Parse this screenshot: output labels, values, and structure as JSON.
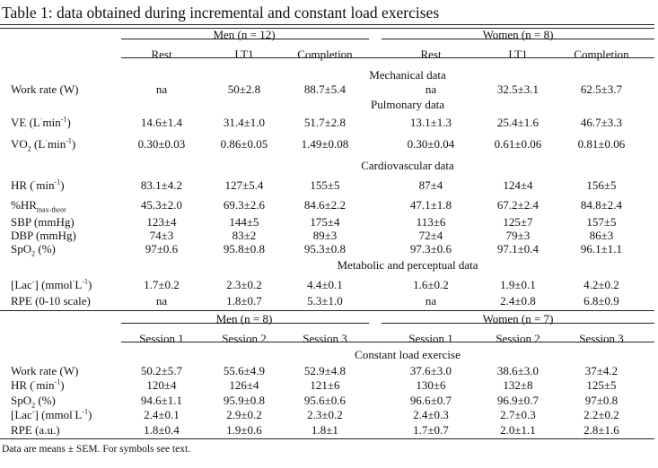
{
  "title": "Table 1: data obtained during incremental and constant load exercises",
  "incremental": {
    "groups": [
      "Men (n = 12)",
      "Women (n = 8)"
    ],
    "columns": [
      "Rest",
      "LT1",
      "Completion",
      "Rest",
      "LT1",
      "Completion"
    ],
    "sections": [
      {
        "heading": "Mechanical data",
        "rows": [
          {
            "label": [
              {
                "t": "Work rate (W)"
              }
            ],
            "values": [
              "na",
              "50±2.8",
              "88.7±5.4",
              "na",
              "32.5±3.1",
              "62.5±3.7"
            ]
          }
        ]
      },
      {
        "heading": "Pulmonary data",
        "rows": [
          {
            "label": [
              {
                "t": "VE (L"
              },
              {
                "t": "·",
                "s": "sup"
              },
              {
                "t": "min"
              },
              {
                "t": "-1",
                "s": "sup"
              },
              {
                "t": ")"
              }
            ],
            "values": [
              "14.6±1.4",
              "31.4±1.0",
              "51.7±2.8",
              "13.1±1.3",
              "25.4±1.6",
              "46.7±3.3"
            ]
          },
          {
            "label": [
              {
                "t": "VO"
              },
              {
                "t": "2",
                "s": "sub"
              },
              {
                "t": " (L"
              },
              {
                "t": "·",
                "s": "sup"
              },
              {
                "t": "min"
              },
              {
                "t": "-1",
                "s": "sup"
              },
              {
                "t": ")"
              }
            ],
            "values": [
              "0.30±0.03",
              "0.86±0.05",
              "1.49±0.08",
              "0.30±0.04",
              "0.61±0.06",
              "0.81±0.06"
            ]
          }
        ]
      },
      {
        "heading": "Cardiovascular data",
        "rows": [
          {
            "label": [
              {
                "t": "HR ("
              },
              {
                "t": "·",
                "s": "sup"
              },
              {
                "t": "min"
              },
              {
                "t": "-1",
                "s": "sup"
              },
              {
                "t": ")"
              }
            ],
            "values": [
              "83.1±4.2",
              "127±5.4",
              "155±5",
              "87±4",
              "124±4",
              "156±5"
            ]
          },
          {
            "label": [
              {
                "t": "%HR"
              },
              {
                "t": "max-theor",
                "s": "sub"
              }
            ],
            "values": [
              "45.3±2.0",
              "69.3±2.6",
              "84.6±2.2",
              "47.1±1.8",
              "67.2±2.4",
              "84.8±2.4"
            ]
          },
          {
            "label": [
              {
                "t": "SBP (mmHg)"
              }
            ],
            "values": [
              "123±4",
              "144±5",
              "175±4",
              "113±6",
              "125±7",
              "157±5"
            ]
          },
          {
            "label": [
              {
                "t": "DBP (mmHg)"
              }
            ],
            "values": [
              "74±3",
              "83±2",
              "89±3",
              "72±4",
              "79±3",
              "86±3"
            ]
          },
          {
            "label": [
              {
                "t": "SpO"
              },
              {
                "t": "2",
                "s": "sub"
              },
              {
                "t": " (%)"
              }
            ],
            "values": [
              "97±0.6",
              "95.8±0.8",
              "95.3±0.8",
              "97.3±0.6",
              "97.1±0.4",
              "96.1±1.1"
            ]
          }
        ]
      },
      {
        "heading": "Metabolic and perceptual data",
        "rows": [
          {
            "label": [
              {
                "t": "[Lac"
              },
              {
                "t": "-",
                "s": "sup"
              },
              {
                "t": "] (mmol"
              },
              {
                "t": "·",
                "s": "sup"
              },
              {
                "t": "L"
              },
              {
                "t": "-1",
                "s": "sup"
              },
              {
                "t": ")"
              }
            ],
            "values": [
              "1.7±0.2",
              "2.3±0.2",
              "4.4±0.1",
              "1.6±0.2",
              "1.9±0.1",
              "4.2±0.2"
            ]
          },
          {
            "label": [
              {
                "t": "RPE (0-10 scale)"
              }
            ],
            "values": [
              "na",
              "1.8±0.7",
              "5.3±1.0",
              "na",
              "2.4±0.8",
              "6.8±0.9"
            ]
          }
        ]
      }
    ]
  },
  "constant": {
    "groups": [
      "Men (n = 8)",
      "Women (n = 7)"
    ],
    "columns": [
      "Session 1",
      "Session 2",
      "Session 3",
      "Session 1",
      "Session 2",
      "Session 3"
    ],
    "sections": [
      {
        "heading": "Constant load exercise",
        "rows": [
          {
            "label": [
              {
                "t": "Work rate (W)"
              }
            ],
            "values": [
              "50.2±5.7",
              "55.6±4.9",
              "52.9±4.8",
              "37.6±3.0",
              "38.6±3.0",
              "37±4.2"
            ]
          },
          {
            "label": [
              {
                "t": "HR ("
              },
              {
                "t": "·",
                "s": "sup"
              },
              {
                "t": "min"
              },
              {
                "t": "-1",
                "s": "sup"
              },
              {
                "t": ")"
              }
            ],
            "values": [
              "120±4",
              "126±4",
              "121±6",
              "130±6",
              "132±8",
              "125±5"
            ]
          },
          {
            "label": [
              {
                "t": "SpO"
              },
              {
                "t": "2",
                "s": "sub"
              },
              {
                "t": " (%)"
              }
            ],
            "values": [
              "94.6±1.1",
              "95.9±0.8",
              "95.6±0.6",
              "96.6±0.7",
              "96.9±0.7",
              "97±0.8"
            ]
          },
          {
            "label": [
              {
                "t": "[Lac"
              },
              {
                "t": "-",
                "s": "sup"
              },
              {
                "t": "] (mmol"
              },
              {
                "t": "·",
                "s": "sup"
              },
              {
                "t": "L"
              },
              {
                "t": "-1",
                "s": "sup"
              },
              {
                "t": ")"
              }
            ],
            "values": [
              "2.4±0.1",
              "2.9±0.2",
              "2.3±0.2",
              "2.4±0.3",
              "2.7±0.3",
              "2.2±0.2"
            ]
          },
          {
            "label": [
              {
                "t": "RPE (a.u.)"
              }
            ],
            "values": [
              "1.8±0.4",
              "1.9±0.6",
              "1.8±1",
              "1.7±0.7",
              "2.0±1.1",
              "2.8±1.6"
            ]
          }
        ]
      }
    ]
  },
  "footnote": "Data are means  ± SEM. For symbols see text."
}
